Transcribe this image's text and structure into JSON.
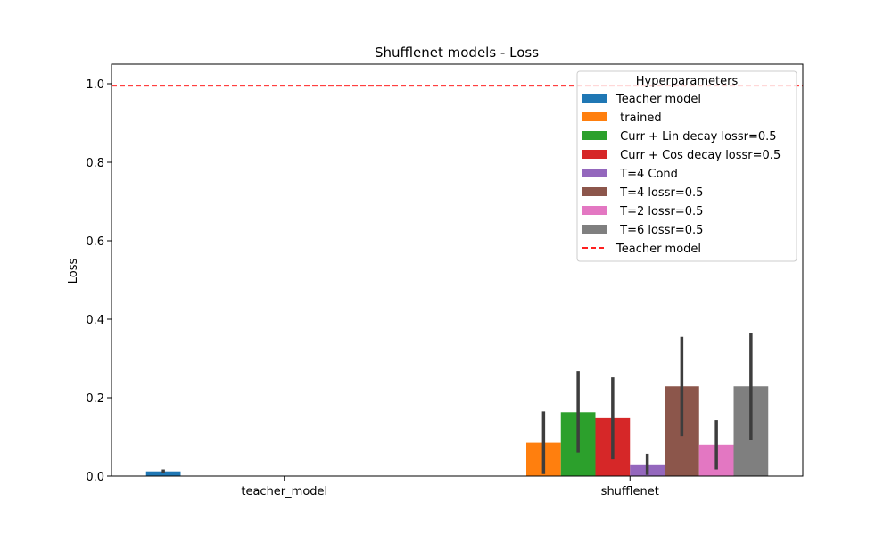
{
  "chart_data": {
    "type": "bar",
    "title": "Shufflenet models - Loss",
    "xlabel": "",
    "ylabel": "Loss",
    "ylim": [
      0,
      1.05
    ],
    "yticks": [
      "0.0",
      "0.2",
      "0.4",
      "0.6",
      "0.8",
      "1.0"
    ],
    "categories": [
      "teacher_model",
      "shufflenet"
    ],
    "legend_title": "Hyperparameters",
    "legend_position": "top-right",
    "grid": false,
    "series": [
      {
        "name": "Teacher model",
        "color": "#1f77b4",
        "values": [
          0.012,
          null
        ],
        "err_low": [
          0.008,
          null
        ],
        "err_high": [
          0.017,
          null
        ]
      },
      {
        "name": " trained",
        "color": "#ff7f0e",
        "values": [
          null,
          0.085
        ],
        "err_low": [
          null,
          0.005
        ],
        "err_high": [
          null,
          0.165
        ]
      },
      {
        "name": " Curr + Lin decay lossr=0.5",
        "color": "#2ca02c",
        "values": [
          null,
          0.163
        ],
        "err_low": [
          null,
          0.06
        ],
        "err_high": [
          null,
          0.268
        ]
      },
      {
        "name": " Curr + Cos decay lossr=0.5",
        "color": "#d62728",
        "values": [
          null,
          0.148
        ],
        "err_low": [
          null,
          0.043
        ],
        "err_high": [
          null,
          0.252
        ]
      },
      {
        "name": " T=4 Cond",
        "color": "#9467bd",
        "values": [
          null,
          0.03
        ],
        "err_low": [
          null,
          0.003
        ],
        "err_high": [
          null,
          0.057
        ]
      },
      {
        "name": " T=4 lossr=0.5",
        "color": "#8c564b",
        "values": [
          null,
          0.229
        ],
        "err_low": [
          null,
          0.102
        ],
        "err_high": [
          null,
          0.355
        ]
      },
      {
        "name": " T=2 lossr=0.5",
        "color": "#e377c2",
        "values": [
          null,
          0.08
        ],
        "err_low": [
          null,
          0.017
        ],
        "err_high": [
          null,
          0.143
        ]
      },
      {
        "name": " T=6 lossr=0.5",
        "color": "#7f7f7f",
        "values": [
          null,
          0.229
        ],
        "err_low": [
          null,
          0.091
        ],
        "err_high": [
          null,
          0.366
        ]
      }
    ],
    "reference_line": {
      "name": "Teacher model",
      "value": 0.995,
      "color": "#ff0000",
      "style": "dashed"
    }
  }
}
